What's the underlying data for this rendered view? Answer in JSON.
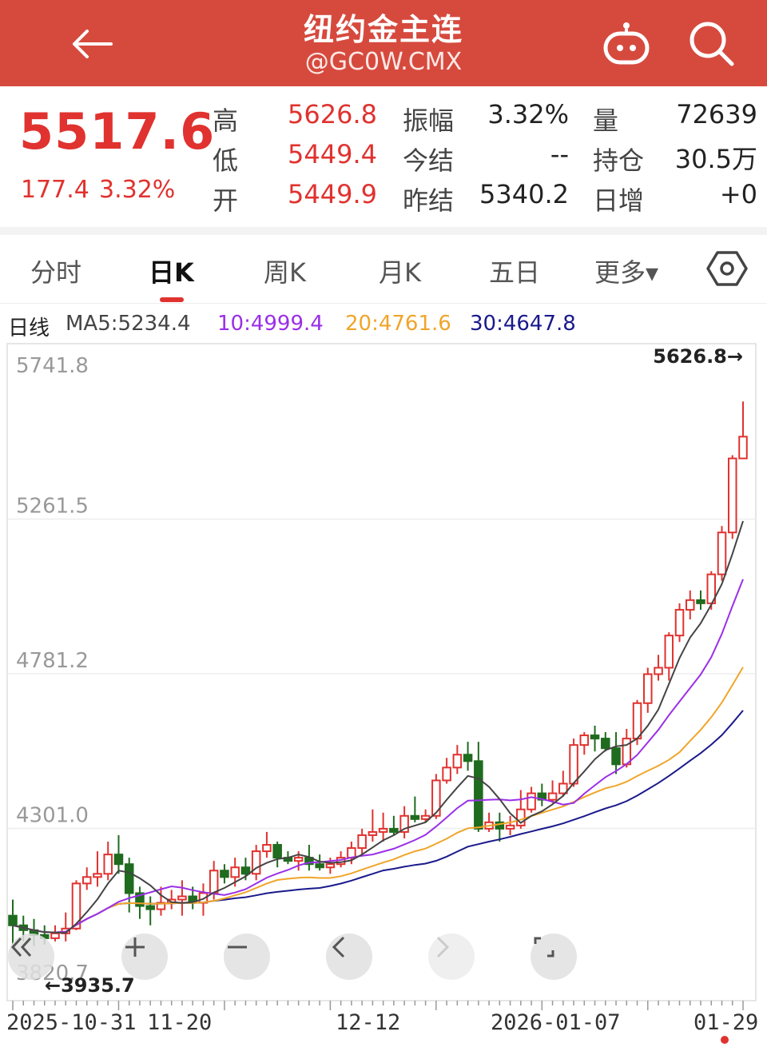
{
  "header": {
    "title": "纽约金主连",
    "subtitle": "@GC0W.CMX",
    "back_icon": "arrow-left-icon",
    "robot_icon": "robot-icon",
    "search_icon": "search-icon",
    "bg_color": "#d64a3e"
  },
  "quote": {
    "price": "5517.6",
    "change": "177.4",
    "change_pct": "3.32%",
    "fields": {
      "high_label": "高",
      "high": "5626.8",
      "low_label": "低",
      "low": "5449.4",
      "open_label": "开",
      "open": "5449.9",
      "amp_label": "振幅",
      "amp": "3.32%",
      "settle_label": "今结",
      "settle": "--",
      "prev_settle_label": "昨结",
      "prev_settle": "5340.2",
      "vol_label": "量",
      "vol": "72639",
      "oi_label": "持仓",
      "oi": "30.5万",
      "daily_inc_label": "日增",
      "daily_inc": "+0"
    },
    "up_color": "#e0322f"
  },
  "tabs": [
    {
      "label": "分时"
    },
    {
      "label": "日K"
    },
    {
      "label": "周K"
    },
    {
      "label": "月K"
    },
    {
      "label": "五日"
    },
    {
      "label": "更多▾"
    }
  ],
  "active_tab": "日K",
  "ma_legend": {
    "title": "日线",
    "ma5": "MA5:5234.4",
    "ma10": "10:4999.4",
    "ma20": "20:4761.6",
    "ma30": "30:4647.8",
    "colors": {
      "ma5": "#444444",
      "ma10": "#9b2fe8",
      "ma20": "#f0a52a",
      "ma30": "#1a1a8c"
    }
  },
  "chart_data": {
    "type": "candlestick",
    "y_ticks": [
      "5741.8",
      "5261.5",
      "4781.2",
      "4301.0",
      "3820.7"
    ],
    "ylim": [
      3820.7,
      5741.8
    ],
    "x_labels": [
      "2025-10-31",
      "11-20",
      "12-12",
      "2026-01-07",
      "01-29"
    ],
    "max_marker": "5626.8→",
    "min_marker": "←3935.7",
    "candles": [
      [
        4030,
        4000,
        4080,
        3940
      ],
      [
        4000,
        3985,
        4030,
        3950
      ],
      [
        3985,
        3970,
        4020,
        3936
      ],
      [
        3970,
        3960,
        4000,
        3940
      ],
      [
        3960,
        3975,
        4000,
        3950
      ],
      [
        3975,
        3990,
        4040,
        3950
      ],
      [
        3990,
        4130,
        4140,
        3985
      ],
      [
        4130,
        4150,
        4180,
        4110
      ],
      [
        4150,
        4160,
        4230,
        4120
      ],
      [
        4160,
        4220,
        4260,
        4140
      ],
      [
        4220,
        4190,
        4280,
        4160
      ],
      [
        4190,
        4100,
        4210,
        4040
      ],
      [
        4100,
        4060,
        4120,
        4020
      ],
      [
        4060,
        4050,
        4090,
        4000
      ],
      [
        4050,
        4070,
        4120,
        4030
      ],
      [
        4070,
        4080,
        4110,
        4050
      ],
      [
        4080,
        4090,
        4140,
        4030
      ],
      [
        4090,
        4070,
        4120,
        4050
      ],
      [
        4070,
        4100,
        4130,
        4030
      ],
      [
        4100,
        4170,
        4200,
        4080
      ],
      [
        4170,
        4150,
        4190,
        4130
      ],
      [
        4150,
        4180,
        4210,
        4120
      ],
      [
        4180,
        4160,
        4210,
        4140
      ],
      [
        4160,
        4230,
        4250,
        4140
      ],
      [
        4230,
        4250,
        4290,
        4210
      ],
      [
        4250,
        4210,
        4260,
        4180
      ],
      [
        4210,
        4200,
        4230,
        4190
      ],
      [
        4200,
        4210,
        4230,
        4170
      ],
      [
        4210,
        4190,
        4250,
        4170
      ],
      [
        4190,
        4180,
        4220,
        4170
      ],
      [
        4180,
        4190,
        4210,
        4160
      ],
      [
        4190,
        4210,
        4230,
        4180
      ],
      [
        4210,
        4240,
        4260,
        4190
      ],
      [
        4240,
        4280,
        4300,
        4220
      ],
      [
        4280,
        4290,
        4360,
        4260
      ],
      [
        4290,
        4300,
        4350,
        4260
      ],
      [
        4300,
        4290,
        4340,
        4280
      ],
      [
        4290,
        4340,
        4370,
        4270
      ],
      [
        4340,
        4330,
        4400,
        4320
      ],
      [
        4330,
        4340,
        4360,
        4320
      ],
      [
        4340,
        4450,
        4470,
        4330
      ],
      [
        4450,
        4490,
        4520,
        4440
      ],
      [
        4490,
        4530,
        4560,
        4470
      ],
      [
        4530,
        4510,
        4570,
        4480
      ],
      [
        4510,
        4300,
        4570,
        4290
      ],
      [
        4300,
        4320,
        4350,
        4290
      ],
      [
        4320,
        4300,
        4350,
        4260
      ],
      [
        4300,
        4310,
        4340,
        4280
      ],
      [
        4310,
        4360,
        4420,
        4300
      ],
      [
        4360,
        4410,
        4430,
        4350
      ],
      [
        4410,
        4390,
        4440,
        4370
      ],
      [
        4390,
        4410,
        4450,
        4380
      ],
      [
        4410,
        4440,
        4480,
        4400
      ],
      [
        4440,
        4560,
        4580,
        4430
      ],
      [
        4560,
        4590,
        4600,
        4530
      ],
      [
        4590,
        4580,
        4620,
        4540
      ],
      [
        4580,
        4550,
        4600,
        4540
      ],
      [
        4550,
        4500,
        4600,
        4470
      ],
      [
        4500,
        4580,
        4610,
        4490
      ],
      [
        4580,
        4690,
        4700,
        4560
      ],
      [
        4690,
        4780,
        4800,
        4660
      ],
      [
        4780,
        4800,
        4840,
        4760
      ],
      [
        4800,
        4900,
        4910,
        4760
      ],
      [
        4900,
        4980,
        5000,
        4880
      ],
      [
        4980,
        5010,
        5040,
        4950
      ],
      [
        5010,
        5000,
        5040,
        4980
      ],
      [
        5000,
        5090,
        5100,
        4980
      ],
      [
        5090,
        5220,
        5240,
        5070
      ],
      [
        5220,
        5450,
        5460,
        5200
      ],
      [
        5450,
        5517.6,
        5626.8,
        5449.4
      ]
    ]
  },
  "controls": {
    "collapse_icon": "double-chevron-left-icon",
    "zoom_in_icon": "plus-icon",
    "zoom_out_icon": "minus-icon",
    "prev_icon": "chevron-left-icon",
    "next_icon": "chevron-right-icon",
    "fullscreen_icon": "fullscreen-icon"
  },
  "settings_icon": "hexagon-settings-icon"
}
